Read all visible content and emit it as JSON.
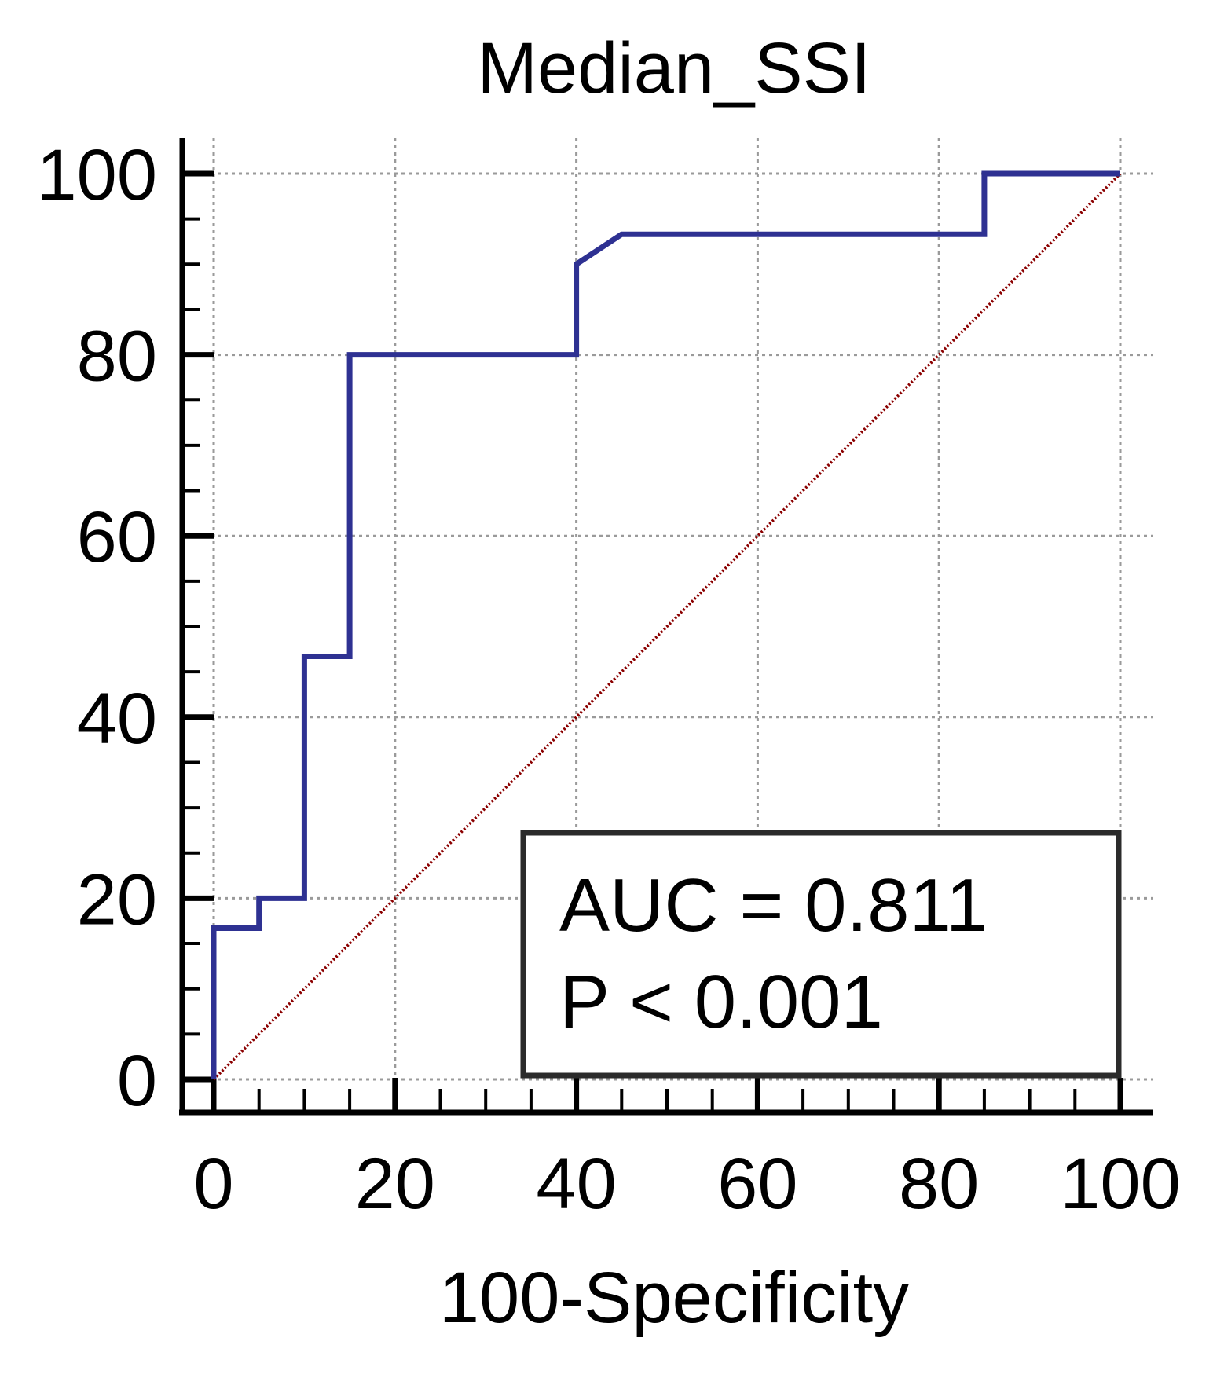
{
  "chart_data": {
    "type": "line",
    "title": "Median_SSI",
    "xlabel": "100-Specificity",
    "ylabel": "",
    "xlim": [
      0,
      100
    ],
    "ylim": [
      0,
      100
    ],
    "x_ticks": [
      0,
      20,
      40,
      60,
      80,
      100
    ],
    "y_ticks": [
      0,
      20,
      40,
      60,
      80,
      100
    ],
    "x_tick_labels": [
      "0",
      "20",
      "40",
      "60",
      "80",
      "100"
    ],
    "y_tick_labels": [
      "0",
      "20",
      "40",
      "60",
      "80",
      "100"
    ],
    "grid": true,
    "series": [
      {
        "x": [
          0,
          0,
          5,
          5,
          10,
          10,
          15,
          15,
          40,
          40,
          45,
          85,
          85,
          100
        ],
        "y": [
          0,
          16.7,
          16.7,
          20,
          20,
          46.7,
          46.7,
          80,
          80,
          90,
          93.3,
          93.3,
          100,
          100
        ],
        "color": "#2e3192"
      },
      {
        "x": [
          0,
          100
        ],
        "y": [
          0,
          100
        ],
        "color": "#8b0000",
        "style": "dotted"
      }
    ],
    "annotation": {
      "lines": [
        "AUC = 0.811",
        "P < 0.001"
      ],
      "placement": "bottom-right"
    }
  }
}
